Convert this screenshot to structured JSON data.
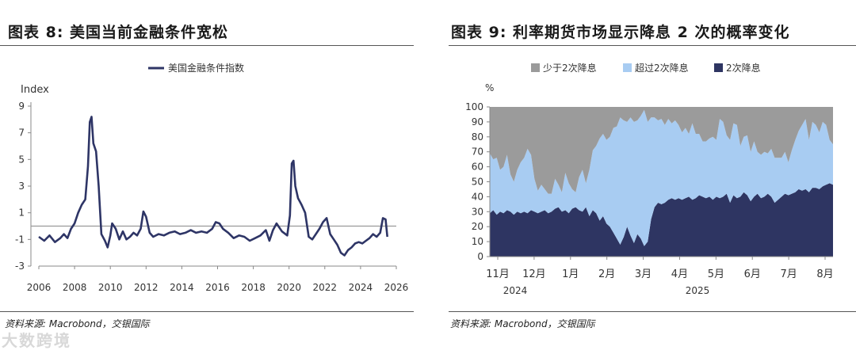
{
  "left": {
    "title": "图表 8: 美国当前金融条件宽松",
    "source": "资料来源: Macrobond，交银国际"
  },
  "right": {
    "title": "图表 9: 利率期货市场显示降息 2 次的概率变化",
    "source": "资料来源: Macrobond，交银国际"
  },
  "watermark": "大数跨境",
  "chart_data": [
    {
      "type": "line",
      "ylabel": "Index",
      "xlim": [
        2006,
        2026
      ],
      "ylim": [
        -3,
        9
      ],
      "y_ticks": [
        9,
        7,
        5,
        3,
        1,
        -1,
        -3
      ],
      "x_ticks": [
        2006,
        2008,
        2010,
        2012,
        2014,
        2016,
        2018,
        2020,
        2022,
        2024,
        2026
      ],
      "reference_line": 0,
      "legend": "top-center",
      "color": "#2e3566",
      "series": [
        {
          "name": "美国金融条件指数",
          "x": [
            2006.0,
            2006.3,
            2006.6,
            2006.9,
            2007.2,
            2007.4,
            2007.6,
            2007.8,
            2008.0,
            2008.2,
            2008.4,
            2008.6,
            2008.75,
            2008.85,
            2008.95,
            2009.05,
            2009.2,
            2009.35,
            2009.5,
            2009.7,
            2009.85,
            2010.0,
            2010.1,
            2010.3,
            2010.5,
            2010.7,
            2010.9,
            2011.1,
            2011.3,
            2011.5,
            2011.7,
            2011.85,
            2012.0,
            2012.2,
            2012.4,
            2012.7,
            2013.0,
            2013.3,
            2013.6,
            2013.9,
            2014.2,
            2014.5,
            2014.8,
            2015.1,
            2015.4,
            2015.7,
            2015.9,
            2016.1,
            2016.3,
            2016.6,
            2016.9,
            2017.2,
            2017.5,
            2017.8,
            2018.1,
            2018.4,
            2018.7,
            2018.9,
            2019.1,
            2019.3,
            2019.6,
            2019.9,
            2020.05,
            2020.15,
            2020.25,
            2020.35,
            2020.5,
            2020.7,
            2020.9,
            2021.1,
            2021.3,
            2021.5,
            2021.7,
            2021.9,
            2022.1,
            2022.3,
            2022.5,
            2022.7,
            2022.9,
            2023.1,
            2023.3,
            2023.5,
            2023.7,
            2023.9,
            2024.1,
            2024.3,
            2024.5,
            2024.7,
            2024.9,
            2025.1,
            2025.25,
            2025.4,
            2025.5
          ],
          "y": [
            -0.8,
            -1.1,
            -0.7,
            -1.2,
            -0.9,
            -0.6,
            -0.9,
            -0.2,
            0.2,
            1.0,
            1.6,
            2.0,
            4.5,
            7.8,
            8.2,
            6.2,
            5.6,
            3.0,
            -0.6,
            -1.1,
            -1.6,
            -0.7,
            0.2,
            -0.2,
            -1.0,
            -0.4,
            -1.0,
            -0.8,
            -0.5,
            -0.7,
            -0.2,
            1.1,
            0.7,
            -0.5,
            -0.8,
            -0.6,
            -0.7,
            -0.5,
            -0.4,
            -0.6,
            -0.5,
            -0.3,
            -0.5,
            -0.4,
            -0.5,
            -0.2,
            0.3,
            0.2,
            -0.2,
            -0.5,
            -0.9,
            -0.7,
            -0.8,
            -1.1,
            -0.9,
            -0.7,
            -0.3,
            -1.1,
            -0.3,
            0.2,
            -0.4,
            -0.7,
            0.8,
            4.7,
            4.9,
            3.0,
            2.1,
            1.6,
            1.0,
            -0.8,
            -1.0,
            -0.6,
            -0.2,
            0.3,
            0.6,
            -0.6,
            -1.0,
            -1.4,
            -2.0,
            -2.2,
            -1.8,
            -1.6,
            -1.3,
            -1.2,
            -1.3,
            -1.1,
            -0.9,
            -0.6,
            -0.8,
            -0.5,
            0.6,
            0.5,
            -0.8
          ]
        }
      ]
    },
    {
      "type": "area",
      "stacked": true,
      "ylabel": "%",
      "ylim": [
        0,
        100
      ],
      "y_ticks": [
        100,
        90,
        80,
        70,
        60,
        50,
        40,
        30,
        20,
        10,
        0
      ],
      "x_labels": [
        "11月",
        "12月",
        "1月",
        "2月",
        "3月",
        "4月",
        "5月",
        "6月",
        "7月",
        "8月"
      ],
      "x_year_labels": [
        "2024",
        "2025"
      ],
      "legend": "top-center",
      "x": [
        0,
        3,
        6,
        9,
        12,
        15,
        18,
        21,
        24,
        27,
        30,
        33,
        36,
        39,
        42,
        45,
        48,
        51,
        54,
        57,
        60,
        63,
        66,
        69,
        72,
        75,
        78,
        81,
        84,
        87,
        90,
        93,
        96,
        99,
        102,
        105,
        108,
        111,
        114,
        117,
        120,
        123,
        126,
        129,
        132,
        135,
        138,
        141,
        144,
        147,
        150,
        153,
        156,
        159,
        162,
        165,
        168,
        171,
        174,
        177,
        180,
        183,
        186,
        189,
        192,
        195,
        198,
        201,
        204,
        207,
        210,
        213,
        216,
        219,
        222,
        225,
        228,
        231,
        234,
        237,
        240,
        243,
        246,
        249,
        252,
        255,
        258,
        261,
        264,
        267,
        270,
        273,
        276,
        279,
        282,
        285,
        288,
        291,
        294,
        297,
        300
      ],
      "series": [
        {
          "name": "2次降息",
          "color": "#2e3562",
          "values": [
            29,
            31,
            28,
            30,
            29,
            31,
            30,
            28,
            30,
            29,
            30,
            29,
            31,
            30,
            29,
            30,
            31,
            29,
            30,
            32,
            33,
            30,
            31,
            29,
            32,
            33,
            31,
            30,
            33,
            27,
            31,
            29,
            24,
            27,
            22,
            20,
            16,
            12,
            8,
            13,
            20,
            14,
            9,
            15,
            12,
            7,
            10,
            25,
            33,
            36,
            35,
            36,
            38,
            39,
            38,
            39,
            38,
            39,
            40,
            38,
            39,
            41,
            40,
            39,
            40,
            38,
            40,
            39,
            40,
            42,
            36,
            41,
            39,
            40,
            43,
            41,
            37,
            40,
            42,
            39,
            40,
            42,
            40,
            36,
            38,
            40,
            42,
            41,
            42,
            43,
            45,
            44,
            45,
            43,
            46,
            46,
            45,
            47,
            48,
            49,
            48
          ]
        },
        {
          "name": "超过2次降息",
          "color": "#a8ccf2",
          "values": [
            40,
            34,
            38,
            28,
            31,
            37,
            25,
            22,
            28,
            34,
            36,
            43,
            37,
            22,
            15,
            18,
            14,
            13,
            12,
            20,
            15,
            13,
            25,
            20,
            13,
            10,
            22,
            28,
            16,
            31,
            40,
            45,
            55,
            55,
            56,
            60,
            70,
            75,
            85,
            78,
            70,
            79,
            81,
            76,
            82,
            91,
            80,
            68,
            60,
            55,
            57,
            52,
            54,
            50,
            53,
            49,
            45,
            47,
            42,
            51,
            43,
            41,
            37,
            38,
            39,
            42,
            38,
            53,
            50,
            39,
            42,
            48,
            49,
            34,
            37,
            40,
            33,
            37,
            28,
            29,
            30,
            27,
            32,
            30,
            28,
            26,
            28,
            22,
            29,
            35,
            39,
            44,
            47,
            35,
            44,
            42,
            38,
            43,
            40,
            29,
            27
          ]
        },
        {
          "name": "少于2次降息",
          "color": "#9b9b9b",
          "values": [
            31,
            35,
            34,
            42,
            40,
            32,
            45,
            50,
            42,
            37,
            34,
            28,
            32,
            48,
            56,
            52,
            55,
            58,
            58,
            48,
            52,
            57,
            44,
            51,
            55,
            57,
            47,
            42,
            51,
            42,
            29,
            26,
            21,
            18,
            22,
            20,
            14,
            13,
            7,
            9,
            10,
            7,
            10,
            9,
            6,
            2,
            10,
            7,
            7,
            9,
            8,
            12,
            8,
            11,
            9,
            12,
            17,
            14,
            18,
            11,
            18,
            18,
            23,
            23,
            21,
            20,
            22,
            8,
            10,
            19,
            22,
            11,
            12,
            26,
            20,
            19,
            30,
            23,
            30,
            32,
            30,
            31,
            28,
            34,
            34,
            34,
            30,
            37,
            29,
            22,
            16,
            12,
            8,
            22,
            10,
            12,
            17,
            10,
            12,
            22,
            25
          ]
        }
      ]
    }
  ]
}
